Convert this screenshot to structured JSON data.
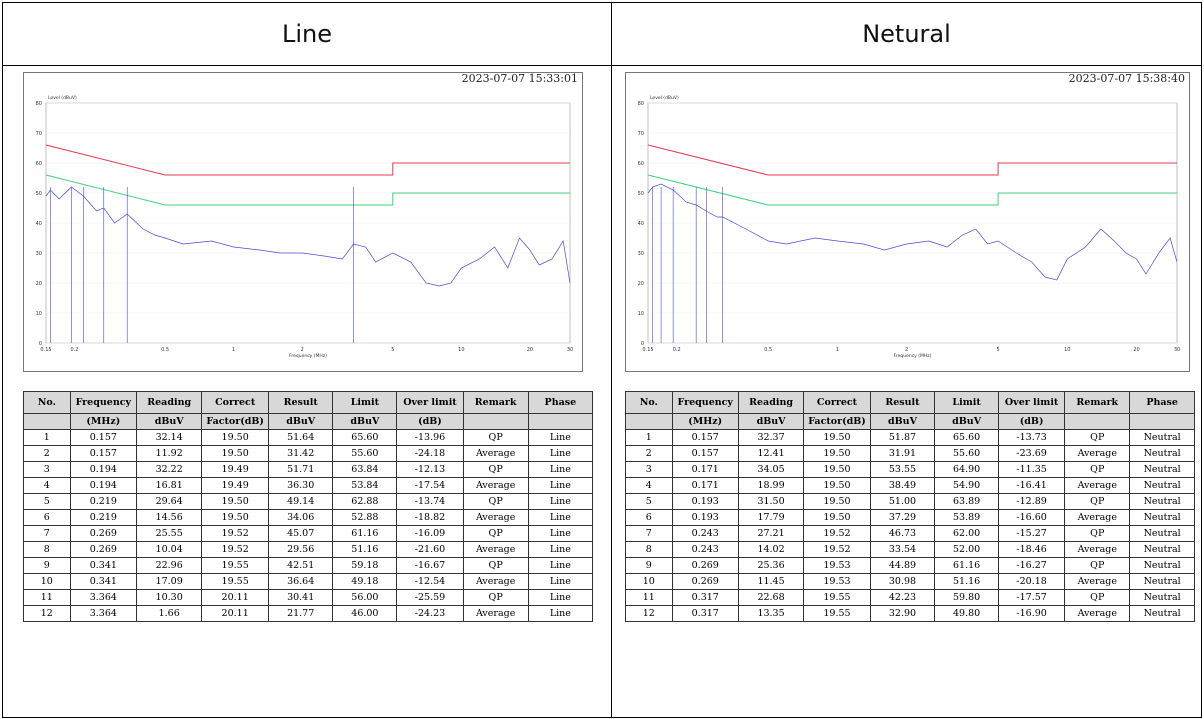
{
  "panels": [
    {
      "title": "Line",
      "timestamp": "2023-07-07 15:33:01",
      "chart_data": {
        "type": "line",
        "ylabel": "Level (dBuV)",
        "xlabel": "Frequency (MHz)",
        "x_scale": "log",
        "xlim": [
          0.15,
          30
        ],
        "ylim": [
          0,
          80
        ],
        "x_ticks": [
          "0.15",
          "0.2",
          "0.5",
          "1",
          "2",
          "5",
          "10",
          "20",
          "30"
        ],
        "y_ticks": [
          "0",
          "10",
          "20",
          "30",
          "40",
          "50",
          "60",
          "70",
          "80"
        ],
        "series": [
          {
            "color": "#e8384f",
            "x": [
              0.15,
              0.5,
              5,
              5,
              30
            ],
            "y": [
              66,
              56,
              56,
              60,
              60
            ]
          },
          {
            "color": "#3fd47a",
            "x": [
              0.15,
              0.5,
              5,
              5,
              30
            ],
            "y": [
              56,
              46,
              46,
              50,
              50
            ]
          },
          {
            "color": "#4a4ad6",
            "x": [
              0.15,
              0.157,
              0.171,
              0.194,
              0.219,
              0.25,
              0.269,
              0.3,
              0.341,
              0.4,
              0.45,
              0.5,
              0.6,
              0.8,
              1.0,
              1.3,
              1.6,
              2.0,
              2.5,
              3.0,
              3.364,
              3.8,
              4.2,
              5.0,
              6.0,
              7.0,
              8.0,
              9.0,
              10.0,
              12.0,
              14.0,
              16.0,
              18.0,
              20.0,
              22.0,
              25.0,
              28.0,
              30.0
            ],
            "y": [
              49,
              51,
              48,
              52,
              49,
              44,
              45,
              40,
              43,
              38,
              36,
              35,
              33,
              34,
              32,
              31,
              30,
              30,
              29,
              28,
              33,
              32,
              27,
              30,
              27,
              20,
              19,
              20,
              25,
              28,
              32,
              25,
              35,
              31,
              26,
              28,
              34,
              20
            ]
          }
        ]
      },
      "headers": [
        "No.",
        "Frequency",
        "Reading",
        "Correct",
        "Result",
        "Limit",
        "Over limit",
        "Remark",
        "Phase"
      ],
      "headers2": [
        "",
        "(MHz)",
        "dBuV",
        "Factor(dB)",
        "dBuV",
        "dBuV",
        "(dB)",
        "",
        ""
      ],
      "rows": [
        [
          "1",
          "0.157",
          "32.14",
          "19.50",
          "51.64",
          "65.60",
          "-13.96",
          "QP",
          "Line"
        ],
        [
          "2",
          "0.157",
          "11.92",
          "19.50",
          "31.42",
          "55.60",
          "-24.18",
          "Average",
          "Line"
        ],
        [
          "3",
          "0.194",
          "32.22",
          "19.49",
          "51.71",
          "63.84",
          "-12.13",
          "QP",
          "Line"
        ],
        [
          "4",
          "0.194",
          "16.81",
          "19.49",
          "36.30",
          "53.84",
          "-17.54",
          "Average",
          "Line"
        ],
        [
          "5",
          "0.219",
          "29.64",
          "19.50",
          "49.14",
          "62.88",
          "-13.74",
          "QP",
          "Line"
        ],
        [
          "6",
          "0.219",
          "14.56",
          "19.50",
          "34.06",
          "52.88",
          "-18.82",
          "Average",
          "Line"
        ],
        [
          "7",
          "0.269",
          "25.55",
          "19.52",
          "45.07",
          "61.16",
          "-16.09",
          "QP",
          "Line"
        ],
        [
          "8",
          "0.269",
          "10.04",
          "19.52",
          "29.56",
          "51.16",
          "-21.60",
          "Average",
          "Line"
        ],
        [
          "9",
          "0.341",
          "22.96",
          "19.55",
          "42.51",
          "59.18",
          "-16.67",
          "QP",
          "Line"
        ],
        [
          "10",
          "0.341",
          "17.09",
          "19.55",
          "36.64",
          "49.18",
          "-12.54",
          "Average",
          "Line"
        ],
        [
          "11",
          "3.364",
          "10.30",
          "20.11",
          "30.41",
          "56.00",
          "-25.59",
          "QP",
          "Line"
        ],
        [
          "12",
          "3.364",
          "1.66",
          "20.11",
          "21.77",
          "46.00",
          "-24.23",
          "Average",
          "Line"
        ]
      ]
    },
    {
      "title": "Netural",
      "timestamp": "2023-07-07 15:38:40",
      "chart_data": {
        "type": "line",
        "ylabel": "Level (dBuV)",
        "xlabel": "Frequency (MHz)",
        "x_scale": "log",
        "xlim": [
          0.15,
          30
        ],
        "ylim": [
          0,
          80
        ],
        "x_ticks": [
          "0.15",
          "0.2",
          "0.5",
          "1",
          "2",
          "5",
          "10",
          "20",
          "30"
        ],
        "y_ticks": [
          "0",
          "10",
          "20",
          "30",
          "40",
          "50",
          "60",
          "70",
          "80"
        ],
        "series": [
          {
            "color": "#e8384f",
            "x": [
              0.15,
              0.5,
              5,
              5,
              30
            ],
            "y": [
              66,
              56,
              56,
              60,
              60
            ]
          },
          {
            "color": "#3fd47a",
            "x": [
              0.15,
              0.5,
              5,
              5,
              30
            ],
            "y": [
              56,
              46,
              46,
              50,
              50
            ]
          },
          {
            "color": "#4a4ad6",
            "x": [
              0.15,
              0.157,
              0.171,
              0.193,
              0.22,
              0.243,
              0.269,
              0.3,
              0.317,
              0.4,
              0.5,
              0.6,
              0.8,
              1.0,
              1.3,
              1.6,
              2.0,
              2.5,
              3.0,
              3.5,
              4.0,
              4.5,
              5.0,
              6.0,
              7.0,
              8.0,
              9.0,
              10.0,
              12.0,
              14.0,
              16.0,
              18.0,
              20.0,
              22.0,
              25.0,
              28.0,
              30.0
            ],
            "y": [
              50,
              52,
              53,
              51,
              47,
              46,
              44,
              42,
              42,
              38,
              34,
              33,
              35,
              34,
              33,
              31,
              33,
              34,
              32,
              36,
              38,
              33,
              34,
              30,
              27,
              22,
              21,
              28,
              32,
              38,
              34,
              30,
              28,
              23,
              30,
              35,
              27
            ]
          }
        ]
      },
      "headers": [
        "No.",
        "Frequency",
        "Reading",
        "Correct",
        "Result",
        "Limit",
        "Over limit",
        "Remark",
        "Phase"
      ],
      "headers2": [
        "",
        "(MHz)",
        "dBuV",
        "Factor(dB)",
        "dBuV",
        "dBuV",
        "(dB)",
        "",
        ""
      ],
      "rows": [
        [
          "1",
          "0.157",
          "32.37",
          "19.50",
          "51.87",
          "65.60",
          "-13.73",
          "QP",
          "Neutral"
        ],
        [
          "2",
          "0.157",
          "12.41",
          "19.50",
          "31.91",
          "55.60",
          "-23.69",
          "Average",
          "Neutral"
        ],
        [
          "3",
          "0.171",
          "34.05",
          "19.50",
          "53.55",
          "64.90",
          "-11.35",
          "QP",
          "Neutral"
        ],
        [
          "4",
          "0.171",
          "18.99",
          "19.50",
          "38.49",
          "54.90",
          "-16.41",
          "Average",
          "Neutral"
        ],
        [
          "5",
          "0.193",
          "31.50",
          "19.50",
          "51.00",
          "63.89",
          "-12.89",
          "QP",
          "Neutral"
        ],
        [
          "6",
          "0.193",
          "17.79",
          "19.50",
          "37.29",
          "53.89",
          "-16.60",
          "Average",
          "Neutral"
        ],
        [
          "7",
          "0.243",
          "27.21",
          "19.52",
          "46.73",
          "62.00",
          "-15.27",
          "QP",
          "Neutral"
        ],
        [
          "8",
          "0.243",
          "14.02",
          "19.52",
          "33.54",
          "52.00",
          "-18.46",
          "Average",
          "Neutral"
        ],
        [
          "9",
          "0.269",
          "25.36",
          "19.53",
          "44.89",
          "61.16",
          "-16.27",
          "QP",
          "Neutral"
        ],
        [
          "10",
          "0.269",
          "11.45",
          "19.53",
          "30.98",
          "51.16",
          "-20.18",
          "Average",
          "Neutral"
        ],
        [
          "11",
          "0.317",
          "22.68",
          "19.55",
          "42.23",
          "59.80",
          "-17.57",
          "QP",
          "Neutral"
        ],
        [
          "12",
          "0.317",
          "13.35",
          "19.55",
          "32.90",
          "49.80",
          "-16.90",
          "Average",
          "Neutral"
        ]
      ]
    }
  ]
}
